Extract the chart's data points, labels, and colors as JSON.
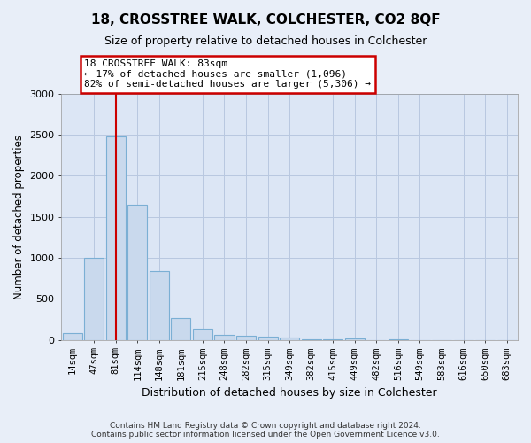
{
  "title": "18, CROSSTREE WALK, COLCHESTER, CO2 8QF",
  "subtitle": "Size of property relative to detached houses in Colchester",
  "xlabel": "Distribution of detached houses by size in Colchester",
  "ylabel": "Number of detached properties",
  "categories": [
    "14sqm",
    "47sqm",
    "81sqm",
    "114sqm",
    "148sqm",
    "181sqm",
    "215sqm",
    "248sqm",
    "282sqm",
    "315sqm",
    "349sqm",
    "382sqm",
    "415sqm",
    "449sqm",
    "482sqm",
    "516sqm",
    "549sqm",
    "583sqm",
    "616sqm",
    "650sqm",
    "683sqm"
  ],
  "values": [
    80,
    1000,
    2480,
    1650,
    840,
    270,
    130,
    60,
    50,
    40,
    30,
    10,
    5,
    20,
    0,
    3,
    0,
    0,
    0,
    0,
    0
  ],
  "bar_color": "#c9d9ed",
  "bar_edge_color": "#7bafd4",
  "vline_x": 2,
  "vline_color": "#cc0000",
  "annotation_line1": "18 CROSSTREE WALK: 83sqm",
  "annotation_line2": "← 17% of detached houses are smaller (1,096)",
  "annotation_line3": "82% of semi-detached houses are larger (5,306) →",
  "annotation_box_color": "white",
  "annotation_box_edge": "#cc0000",
  "ylim": [
    0,
    3000
  ],
  "yticks": [
    0,
    500,
    1000,
    1500,
    2000,
    2500,
    3000
  ],
  "footnote_line1": "Contains HM Land Registry data © Crown copyright and database right 2024.",
  "footnote_line2": "Contains public sector information licensed under the Open Government Licence v3.0.",
  "bg_color": "#e8eef8",
  "plot_bg_color": "#dce6f5",
  "grid_color": "#b8c8e0"
}
